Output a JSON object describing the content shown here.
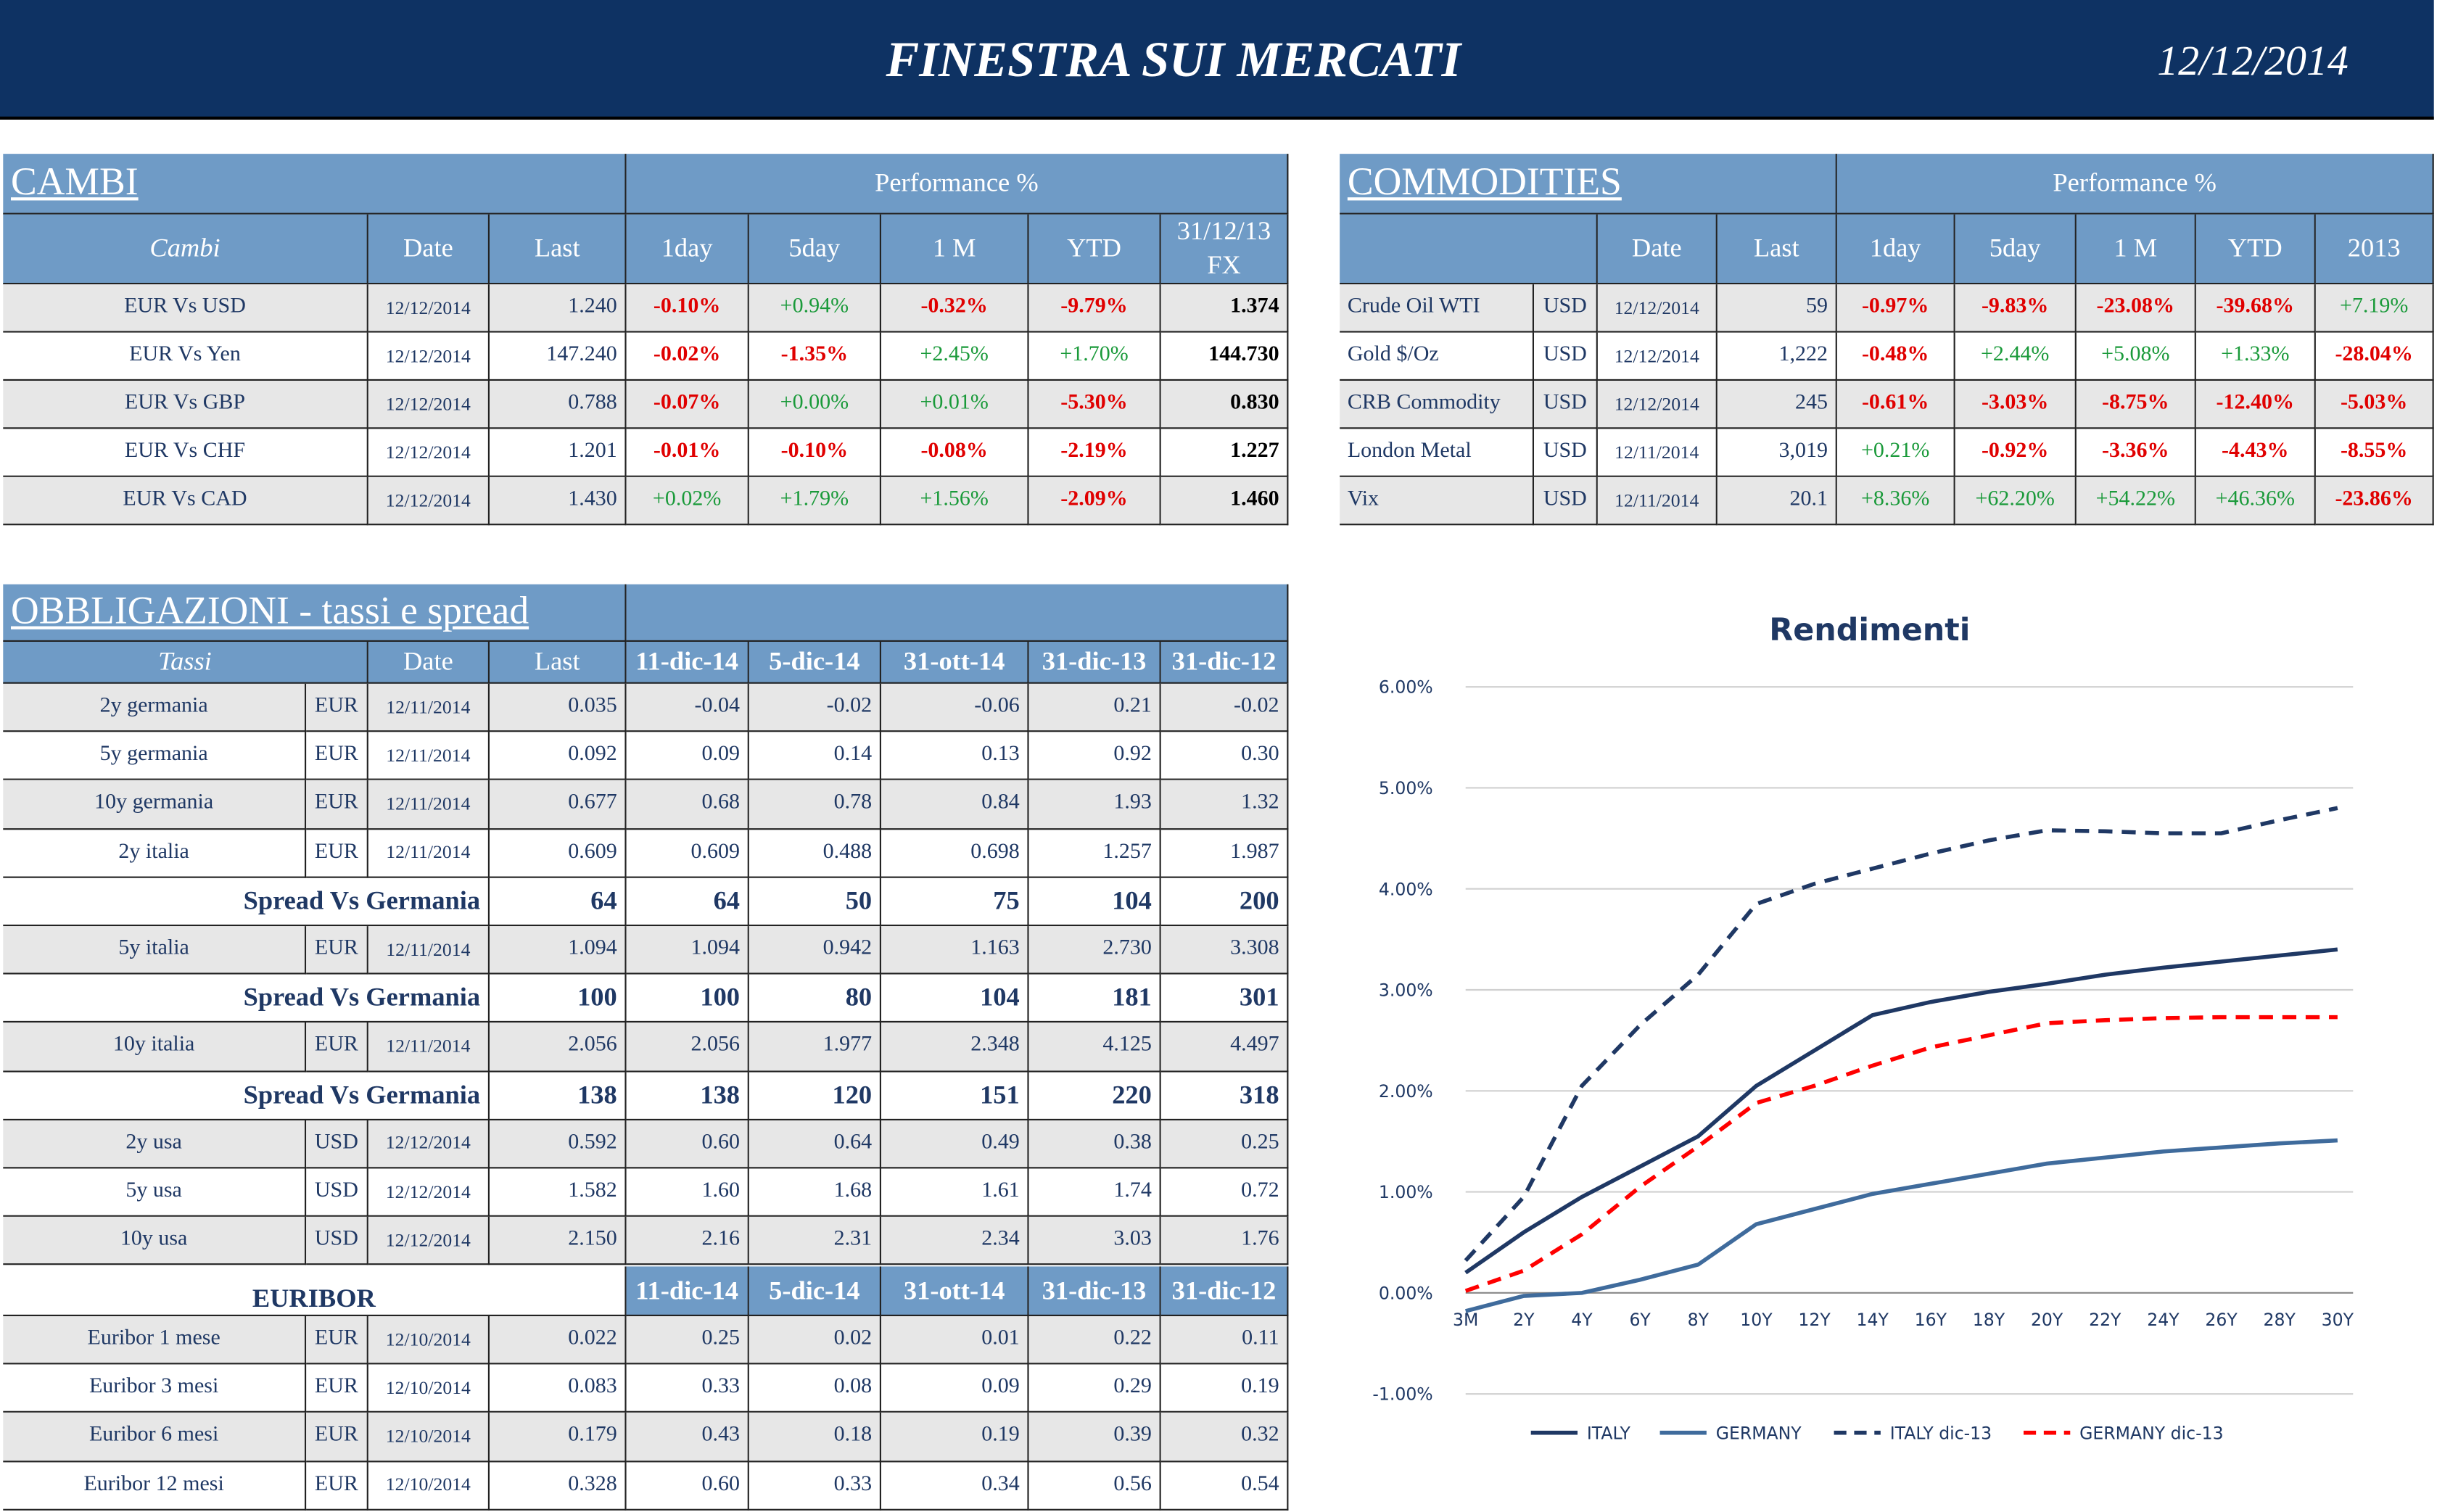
{
  "header": {
    "title": "FINESTRA SUI MERCATI",
    "date": "12/12/2014"
  },
  "cambi": {
    "title": "CAMBI",
    "performance": "Performance  %",
    "headers": [
      "Cambi",
      "Date",
      "Last",
      "1day",
      "5day",
      "1 M",
      "YTD",
      "31/12/13 FX"
    ],
    "rows": [
      [
        "EUR Vs USD",
        "12/12/2014",
        "1.240",
        "-0.10%",
        "+0.94%",
        "-0.32%",
        "-9.79%",
        "1.374"
      ],
      [
        "EUR Vs Yen",
        "12/12/2014",
        "147.240",
        "-0.02%",
        "-1.35%",
        "+2.45%",
        "+1.70%",
        "144.730"
      ],
      [
        "EUR Vs GBP",
        "12/12/2014",
        "0.788",
        "-0.07%",
        "+0.00%",
        "+0.01%",
        "-5.30%",
        "0.830"
      ],
      [
        "EUR Vs CHF",
        "12/12/2014",
        "1.201",
        "-0.01%",
        "-0.10%",
        "-0.08%",
        "-2.19%",
        "1.227"
      ],
      [
        "EUR Vs CAD",
        "12/12/2014",
        "1.430",
        "+0.02%",
        "+1.79%",
        "+1.56%",
        "-2.09%",
        "1.460"
      ]
    ]
  },
  "commodities": {
    "title": "COMMODITIES",
    "performance": "Performance  %",
    "headers": [
      "Date",
      "Last",
      "1day",
      "5day",
      "1 M",
      "YTD",
      "2013"
    ],
    "rows": [
      [
        "Crude Oil WTI",
        "USD",
        "12/12/2014",
        "59",
        "-0.97%",
        "-9.83%",
        "-23.08%",
        "-39.68%",
        "+7.19%"
      ],
      [
        "Gold $/Oz",
        "USD",
        "12/12/2014",
        "1,222",
        "-0.48%",
        "+2.44%",
        "+5.08%",
        "+1.33%",
        "-28.04%"
      ],
      [
        "CRB Commodity",
        "USD",
        "12/12/2014",
        "245",
        "-0.61%",
        "-3.03%",
        "-8.75%",
        "-12.40%",
        "-5.03%"
      ],
      [
        "London Metal",
        "USD",
        "12/11/2014",
        "3,019",
        "+0.21%",
        "-0.92%",
        "-3.36%",
        "-4.43%",
        "-8.55%"
      ],
      [
        "Vix",
        "USD",
        "12/11/2014",
        "20.1",
        "+8.36%",
        "+62.20%",
        "+54.22%",
        "+46.36%",
        "-23.86%"
      ]
    ]
  },
  "obbligazioni": {
    "title": "OBBLIGAZIONI - tassi e spread",
    "headers": [
      "Tassi",
      "Date",
      "Last",
      "11-dic-14",
      "5-dic-14",
      "31-ott-14",
      "31-dic-13",
      "31-dic-12"
    ],
    "rows": [
      [
        "2y germania",
        "EUR",
        "12/11/2014",
        "0.035",
        "-0.04",
        "-0.02",
        "-0.06",
        "0.21",
        "-0.02"
      ],
      [
        "5y germania",
        "EUR",
        "12/11/2014",
        "0.092",
        "0.09",
        "0.14",
        "0.13",
        "0.92",
        "0.30"
      ],
      [
        "10y germania",
        "EUR",
        "12/11/2014",
        "0.677",
        "0.68",
        "0.78",
        "0.84",
        "1.93",
        "1.32"
      ],
      [
        "2y italia",
        "EUR",
        "12/11/2014",
        "0.609",
        "0.609",
        "0.488",
        "0.698",
        "1.257",
        "1.987"
      ],
      [
        "Spread Vs Germania",
        "64",
        "64",
        "50",
        "75",
        "104",
        "200"
      ],
      [
        "5y italia",
        "EUR",
        "12/11/2014",
        "1.094",
        "1.094",
        "0.942",
        "1.163",
        "2.730",
        "3.308"
      ],
      [
        "Spread Vs Germania",
        "100",
        "100",
        "80",
        "104",
        "181",
        "301"
      ],
      [
        "10y italia",
        "EUR",
        "12/11/2014",
        "2.056",
        "2.056",
        "1.977",
        "2.348",
        "4.125",
        "4.497"
      ],
      [
        "Spread Vs Germania",
        "138",
        "138",
        "120",
        "151",
        "220",
        "318"
      ],
      [
        "2y usa",
        "USD",
        "12/12/2014",
        "0.592",
        "0.60",
        "0.64",
        "0.49",
        "0.38",
        "0.25"
      ],
      [
        "5y usa",
        "USD",
        "12/12/2014",
        "1.582",
        "1.60",
        "1.68",
        "1.61",
        "1.74",
        "0.72"
      ],
      [
        "10y usa",
        "USD",
        "12/12/2014",
        "2.150",
        "2.16",
        "2.31",
        "2.34",
        "3.03",
        "1.76"
      ]
    ]
  },
  "euribor": {
    "title": "EURIBOR",
    "headers": [
      "11-dic-14",
      "5-dic-14",
      "31-ott-14",
      "31-dic-13",
      "31-dic-12"
    ],
    "rows": [
      [
        "Euribor 1 mese",
        "EUR",
        "12/10/2014",
        "0.022",
        "0.25",
        "0.02",
        "0.01",
        "0.22",
        "0.11"
      ],
      [
        "Euribor 3 mesi",
        "EUR",
        "12/10/2014",
        "0.083",
        "0.33",
        "0.08",
        "0.09",
        "0.29",
        "0.19"
      ],
      [
        "Euribor 6 mesi",
        "EUR",
        "12/10/2014",
        "0.179",
        "0.43",
        "0.18",
        "0.19",
        "0.39",
        "0.32"
      ],
      [
        "Euribor 12 mesi",
        "EUR",
        "12/10/2014",
        "0.328",
        "0.60",
        "0.33",
        "0.34",
        "0.56",
        "0.54"
      ]
    ]
  },
  "chart_data": {
    "type": "line",
    "title": "Rendimenti",
    "categories": [
      "3M",
      "2Y",
      "4Y",
      "6Y",
      "8Y",
      "10Y",
      "12Y",
      "14Y",
      "16Y",
      "18Y",
      "20Y",
      "22Y",
      "24Y",
      "26Y",
      "28Y",
      "30Y"
    ],
    "ylim": [
      -1,
      6
    ],
    "yticks": [
      {
        "value": -1,
        "label": "-1.00%"
      },
      {
        "value": 0,
        "label": "0.00%"
      },
      {
        "value": 1,
        "label": "1.00%"
      },
      {
        "value": 2,
        "label": "2.00%"
      },
      {
        "value": 3,
        "label": "3.00%"
      },
      {
        "value": 4,
        "label": "4.00%"
      },
      {
        "value": 5,
        "label": "5.00%"
      },
      {
        "value": 6,
        "label": "6.00%"
      }
    ],
    "grid": true,
    "series": [
      {
        "name": "ITALY",
        "color": "#1f3864",
        "dashed": false,
        "values": [
          0.2,
          0.6,
          0.95,
          1.25,
          1.55,
          2.05,
          2.4,
          2.75,
          2.88,
          2.98,
          3.06,
          3.15,
          3.22,
          3.28,
          3.34,
          3.4
        ]
      },
      {
        "name": "GERMANY",
        "color": "#3f6b9c",
        "dashed": false,
        "values": [
          -0.18,
          -0.03,
          0.0,
          0.13,
          0.28,
          0.68,
          0.83,
          0.98,
          1.08,
          1.18,
          1.28,
          1.34,
          1.4,
          1.44,
          1.48,
          1.51
        ]
      },
      {
        "name": "ITALY dic-13",
        "color": "#1f3864",
        "dashed": true,
        "values": [
          0.32,
          0.95,
          2.05,
          2.65,
          3.15,
          3.85,
          4.05,
          4.2,
          4.35,
          4.48,
          4.58,
          4.57,
          4.55,
          4.55,
          4.68,
          4.8
        ]
      },
      {
        "name": "GERMANY dic-13",
        "color": "#ff0000",
        "dashed": true,
        "values": [
          0.02,
          0.22,
          0.58,
          1.05,
          1.45,
          1.88,
          2.05,
          2.25,
          2.43,
          2.55,
          2.67,
          2.7,
          2.72,
          2.73,
          2.73,
          2.73
        ]
      }
    ]
  }
}
